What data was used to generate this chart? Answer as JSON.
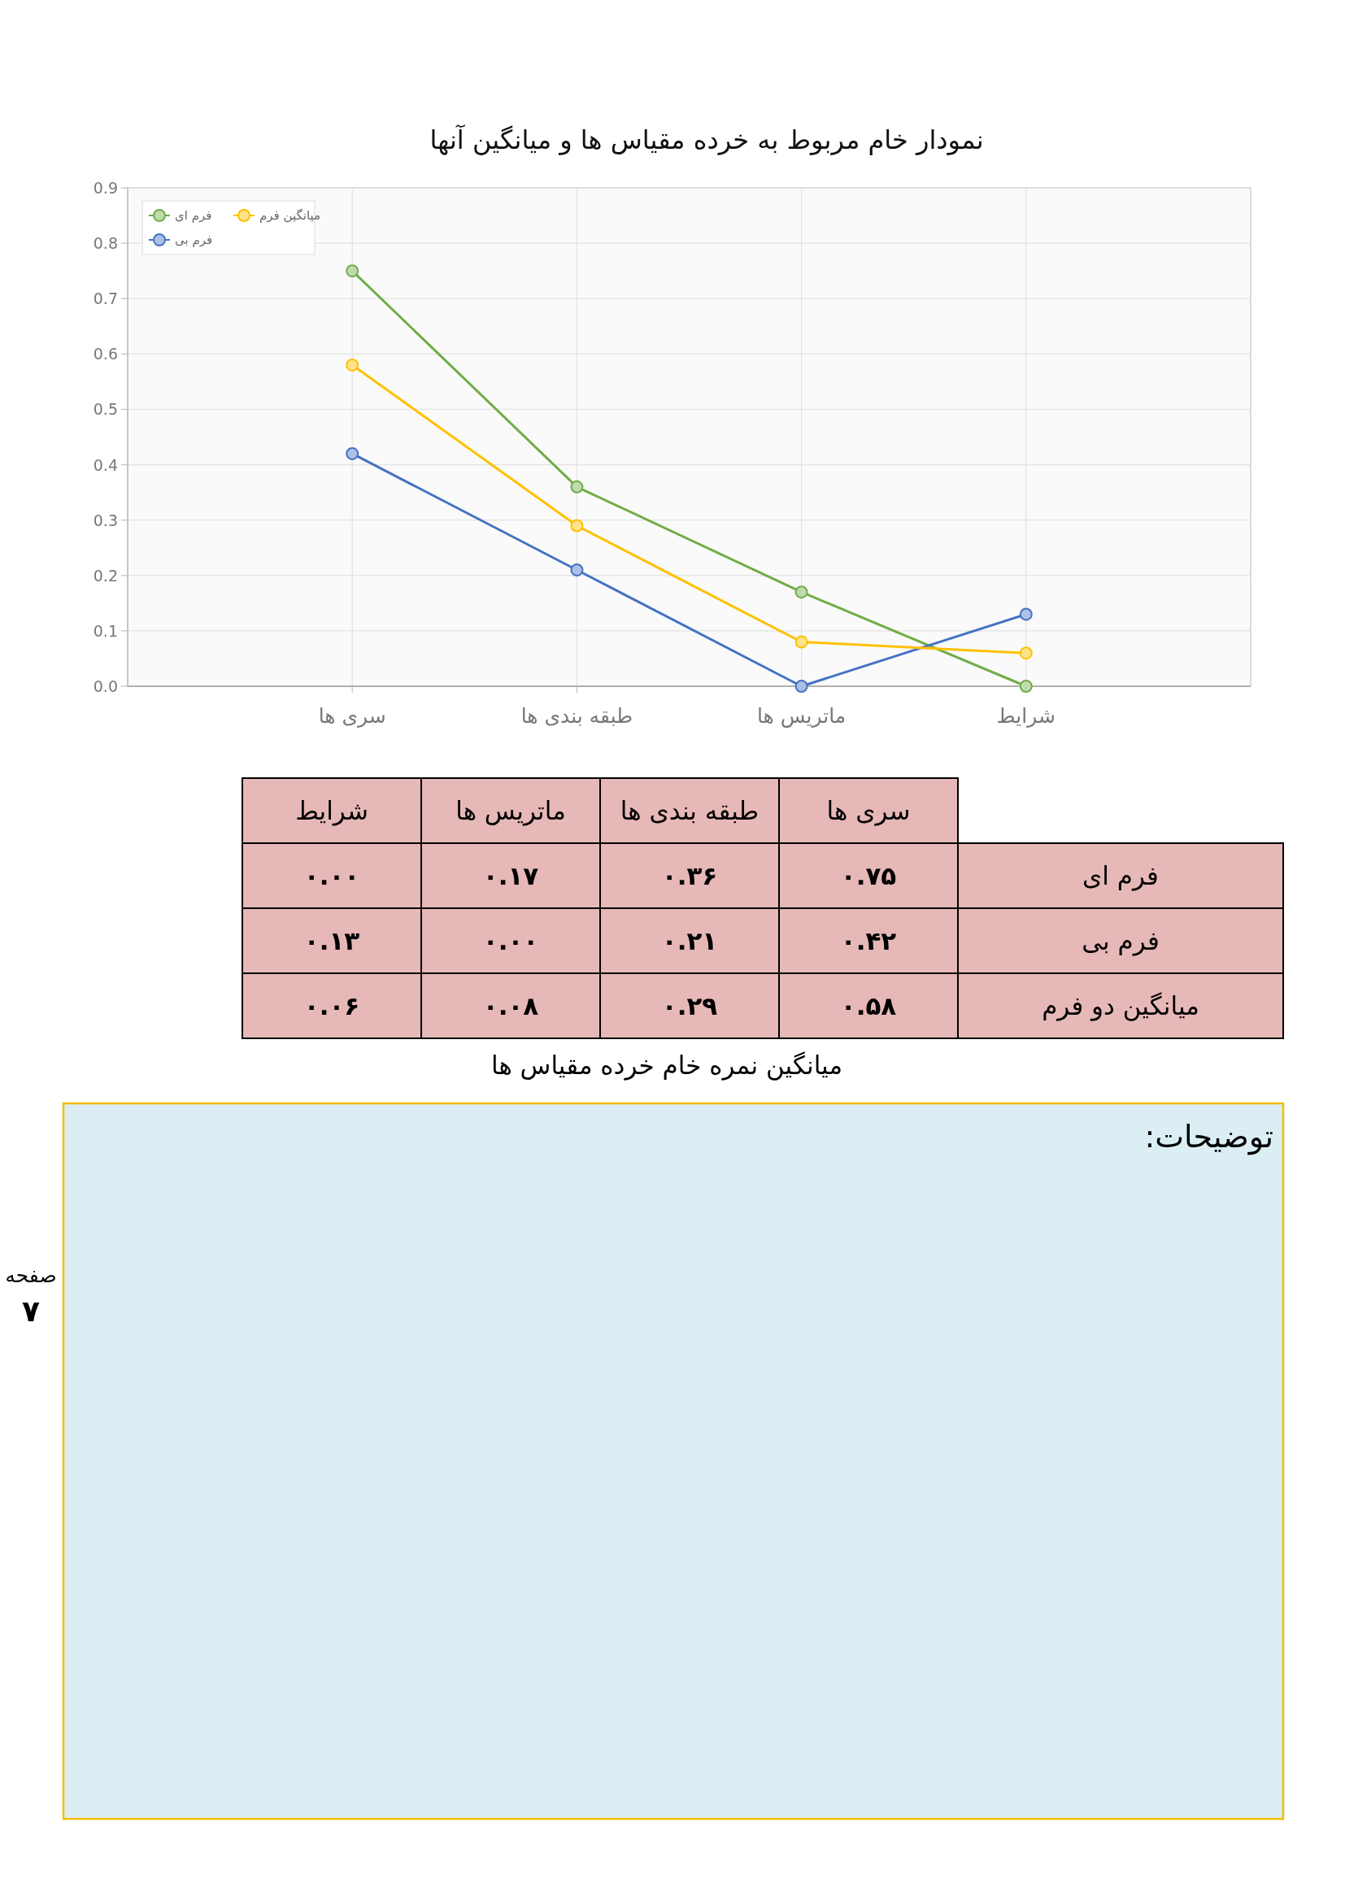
{
  "chart_data": {
    "type": "line",
    "title": "نمودار خام مربوط به خرده مقیاس ها و میانگین آنها",
    "categories": [
      "سری ها",
      "طبقه بندی ها",
      "ماتریس ها",
      "شرایط"
    ],
    "series": [
      {
        "name": "فرم ای",
        "color": "#70ad47",
        "values": [
          0.75,
          0.36,
          0.17,
          0.0
        ]
      },
      {
        "name": "فرم بی",
        "color": "#4472c4",
        "values": [
          0.42,
          0.21,
          0.0,
          0.13
        ]
      },
      {
        "name": "میانگین فرم",
        "color": "#ffc000",
        "values": [
          0.58,
          0.29,
          0.08,
          0.06
        ]
      }
    ],
    "ylim": [
      0,
      0.9
    ],
    "yticks": [
      {
        "value": 0,
        "label": "0.0"
      },
      {
        "value": 0.1,
        "label": "0.1"
      },
      {
        "value": 0.2,
        "label": "0.2"
      },
      {
        "value": 0.3,
        "label": "0.3"
      },
      {
        "value": 0.4,
        "label": "0.4"
      },
      {
        "value": 0.5,
        "label": "0.5"
      },
      {
        "value": 0.6,
        "label": "0.6"
      },
      {
        "value": 0.7,
        "label": "0.7"
      },
      {
        "value": 0.8,
        "label": "0.8"
      },
      {
        "value": 0.9,
        "label": "0.9"
      }
    ],
    "grid": true,
    "legend": "top left",
    "marker": "circle",
    "line_style": "solid",
    "annotations": [
      "فرم ای",
      "فرم بی",
      "میانگین دو فرم",
      "میانگین نمره خام خرده مقیاس ها",
      "توضیحات:",
      "صفحه",
      "۷",
      "۰.۷۵",
      "۰.۳۶",
      "۰.۱۷",
      "۰.۰۰",
      "۰.۴۲",
      "۰.۲۱",
      "۰.۰۰",
      "۰.۱۳",
      "۰.۵۸",
      "۰.۲۹",
      "۰.۰۸",
      "۰.۰۶"
    ]
  }
}
